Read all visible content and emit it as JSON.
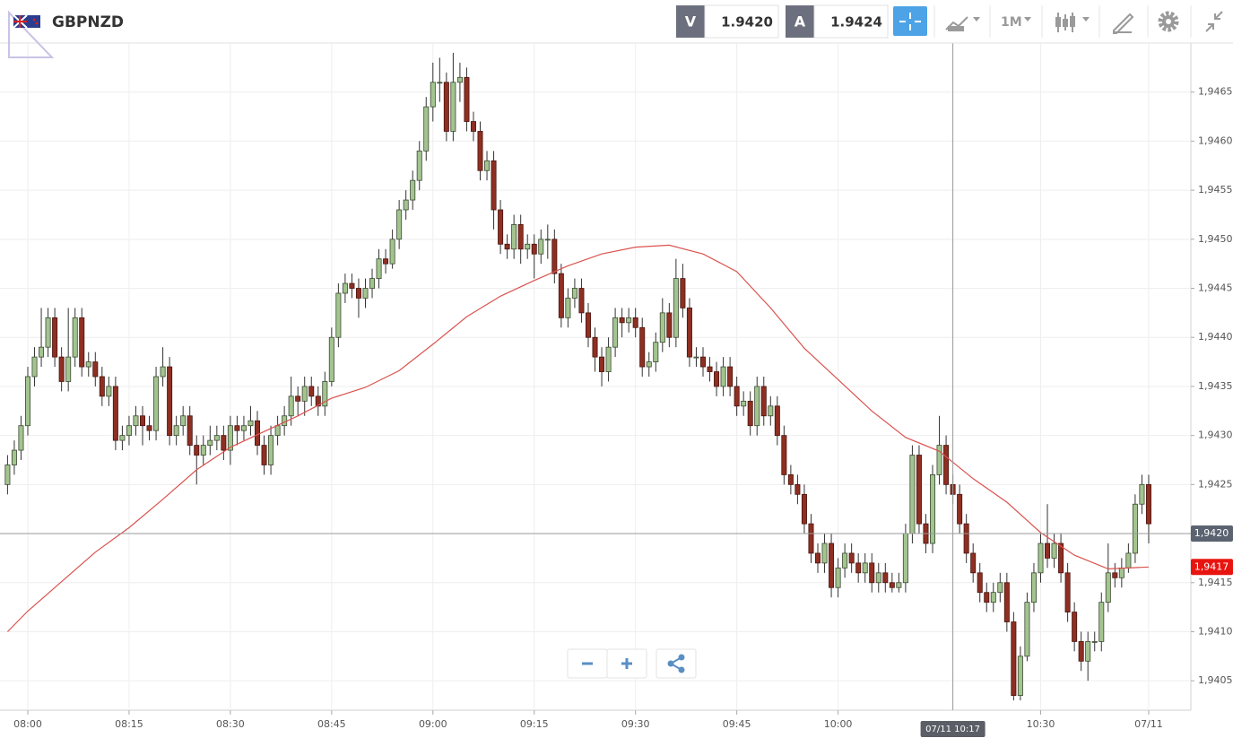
{
  "header": {
    "symbol": "GBPNZD",
    "sell_tag": "V",
    "sell": "1.9420",
    "buy_tag": "A",
    "buy": "1.9424",
    "timeframe": "1M"
  },
  "chart_data": {
    "type": "candlestick",
    "x": [
      "07:57",
      "07:58",
      "07:59",
      "08:00",
      "08:01",
      "08:02",
      "08:03",
      "08:04",
      "08:05",
      "08:06",
      "08:07",
      "08:08",
      "08:09",
      "08:10",
      "08:11",
      "08:12",
      "08:13",
      "08:14",
      "08:15",
      "08:16",
      "08:17",
      "08:18",
      "08:19",
      "08:20",
      "08:21",
      "08:22",
      "08:23",
      "08:24",
      "08:25",
      "08:26",
      "08:27",
      "08:28",
      "08:29",
      "08:30",
      "08:31",
      "08:32",
      "08:33",
      "08:34",
      "08:35",
      "08:36",
      "08:37",
      "08:38",
      "08:39",
      "08:40",
      "08:41",
      "08:42",
      "08:43",
      "08:44",
      "08:45",
      "08:46",
      "08:47",
      "08:48",
      "08:49",
      "08:50",
      "08:51",
      "08:52",
      "08:53",
      "08:54",
      "08:55",
      "08:56",
      "08:57",
      "08:58",
      "08:59",
      "09:00",
      "09:01",
      "09:02",
      "09:03",
      "09:04",
      "09:05",
      "09:06",
      "09:07",
      "09:08",
      "09:09",
      "09:10",
      "09:11",
      "09:12",
      "09:13",
      "09:14",
      "09:15",
      "09:16",
      "09:17",
      "09:18",
      "09:19",
      "09:20",
      "09:21",
      "09:22",
      "09:23",
      "09:24",
      "09:25",
      "09:26",
      "09:27",
      "09:28",
      "09:29",
      "09:30",
      "09:31",
      "09:32",
      "09:33",
      "09:34",
      "09:35",
      "09:36",
      "09:37",
      "09:38",
      "09:39",
      "09:40",
      "09:41",
      "09:42",
      "09:43",
      "09:44",
      "09:45",
      "09:46",
      "09:47",
      "09:48",
      "09:49",
      "09:50",
      "09:51",
      "09:52",
      "09:53",
      "09:54",
      "09:55",
      "09:56",
      "09:57",
      "09:58",
      "09:59",
      "10:00",
      "10:01",
      "10:02",
      "10:03",
      "10:04",
      "10:05",
      "10:06",
      "10:07",
      "10:08",
      "10:09",
      "10:10",
      "10:11",
      "10:12",
      "10:13",
      "10:14",
      "10:15",
      "10:16",
      "10:17",
      "10:18",
      "10:19",
      "10:20",
      "10:21",
      "10:22",
      "10:23",
      "10:24",
      "10:25",
      "10:26",
      "10:27",
      "10:28",
      "10:29",
      "10:30",
      "10:31",
      "10:32",
      "10:33",
      "10:34",
      "10:35",
      "10:36",
      "10:37",
      "10:38",
      "10:39",
      "10:40",
      "10:41",
      "10:42",
      "10:43",
      "10:44",
      "10:45",
      "10:46"
    ],
    "ohlc": [
      [
        1.9425,
        1.9428,
        1.9424,
        1.9427
      ],
      [
        1.9427,
        1.94295,
        1.9426,
        1.94285
      ],
      [
        1.94285,
        1.9432,
        1.94275,
        1.9431
      ],
      [
        1.9431,
        1.9437,
        1.943,
        1.9436
      ],
      [
        1.9436,
        1.9439,
        1.9435,
        1.9438
      ],
      [
        1.9438,
        1.9443,
        1.9437,
        1.9439
      ],
      [
        1.9439,
        1.9443,
        1.9438,
        1.9442
      ],
      [
        1.9442,
        1.9443,
        1.9437,
        1.9438
      ],
      [
        1.9438,
        1.9439,
        1.94345,
        1.94355
      ],
      [
        1.94355,
        1.9443,
        1.94345,
        1.9438
      ],
      [
        1.9438,
        1.9443,
        1.9437,
        1.9442
      ],
      [
        1.9442,
        1.9443,
        1.9436,
        1.9437
      ],
      [
        1.9437,
        1.94385,
        1.9436,
        1.94375
      ],
      [
        1.94375,
        1.94385,
        1.9435,
        1.9436
      ],
      [
        1.9436,
        1.9437,
        1.9433,
        1.9434
      ],
      [
        1.9434,
        1.9436,
        1.9433,
        1.9435
      ],
      [
        1.9435,
        1.9436,
        1.94285,
        1.94295
      ],
      [
        1.94295,
        1.9431,
        1.94285,
        1.943
      ],
      [
        1.943,
        1.9432,
        1.9429,
        1.9431
      ],
      [
        1.9431,
        1.9433,
        1.943,
        1.9432
      ],
      [
        1.9432,
        1.9433,
        1.9429,
        1.9431
      ],
      [
        1.9431,
        1.9432,
        1.94295,
        1.94305
      ],
      [
        1.94305,
        1.9437,
        1.94295,
        1.9436
      ],
      [
        1.9436,
        1.9439,
        1.9435,
        1.9437
      ],
      [
        1.9437,
        1.9438,
        1.9429,
        1.943
      ],
      [
        1.943,
        1.9432,
        1.9429,
        1.9431
      ],
      [
        1.9431,
        1.9433,
        1.943,
        1.9432
      ],
      [
        1.9432,
        1.9433,
        1.9428,
        1.9429
      ],
      [
        1.9429,
        1.943,
        1.9425,
        1.9428
      ],
      [
        1.9428,
        1.943,
        1.9427,
        1.9429
      ],
      [
        1.9429,
        1.9431,
        1.9428,
        1.94295
      ],
      [
        1.94295,
        1.9431,
        1.94285,
        1.943
      ],
      [
        1.943,
        1.9431,
        1.94275,
        1.94285
      ],
      [
        1.94285,
        1.9432,
        1.9427,
        1.9431
      ],
      [
        1.9431,
        1.9432,
        1.9429,
        1.94305
      ],
      [
        1.94305,
        1.9432,
        1.94295,
        1.9431
      ],
      [
        1.9431,
        1.9433,
        1.943,
        1.94315
      ],
      [
        1.94315,
        1.94325,
        1.9428,
        1.9429
      ],
      [
        1.9429,
        1.943,
        1.9426,
        1.9427
      ],
      [
        1.9427,
        1.9431,
        1.9426,
        1.943
      ],
      [
        1.943,
        1.9432,
        1.9429,
        1.9431
      ],
      [
        1.9431,
        1.9433,
        1.943,
        1.9432
      ],
      [
        1.9432,
        1.9436,
        1.9431,
        1.9434
      ],
      [
        1.9434,
        1.9435,
        1.9432,
        1.94335
      ],
      [
        1.94335,
        1.9436,
        1.9432,
        1.9435
      ],
      [
        1.9435,
        1.9436,
        1.9433,
        1.9434
      ],
      [
        1.9434,
        1.9435,
        1.9432,
        1.9433
      ],
      [
        1.9433,
        1.94365,
        1.9432,
        1.94355
      ],
      [
        1.94355,
        1.9441,
        1.9435,
        1.944
      ],
      [
        1.944,
        1.94455,
        1.9439,
        1.94445
      ],
      [
        1.94445,
        1.94465,
        1.94435,
        1.94455
      ],
      [
        1.94455,
        1.94465,
        1.9444,
        1.9445
      ],
      [
        1.9445,
        1.9446,
        1.9442,
        1.9444
      ],
      [
        1.9444,
        1.9446,
        1.9443,
        1.9445
      ],
      [
        1.9445,
        1.9447,
        1.9444,
        1.9446
      ],
      [
        1.9446,
        1.9449,
        1.9445,
        1.9448
      ],
      [
        1.9448,
        1.9449,
        1.94465,
        1.94475
      ],
      [
        1.94475,
        1.9451,
        1.9447,
        1.945
      ],
      [
        1.945,
        1.9454,
        1.9449,
        1.9453
      ],
      [
        1.9453,
        1.9455,
        1.9452,
        1.9454
      ],
      [
        1.9454,
        1.9457,
        1.9453,
        1.9456
      ],
      [
        1.9456,
        1.946,
        1.9455,
        1.9459
      ],
      [
        1.9459,
        1.94645,
        1.9458,
        1.94635
      ],
      [
        1.94635,
        1.9468,
        1.9462,
        1.9466
      ],
      [
        1.9466,
        1.94685,
        1.9464,
        1.9466
      ],
      [
        1.9466,
        1.9467,
        1.946,
        1.9461
      ],
      [
        1.9461,
        1.9469,
        1.946,
        1.9466
      ],
      [
        1.9466,
        1.9468,
        1.9464,
        1.94665
      ],
      [
        1.94665,
        1.94675,
        1.9461,
        1.9462
      ],
      [
        1.9462,
        1.9463,
        1.946,
        1.9461
      ],
      [
        1.9461,
        1.9462,
        1.9456,
        1.9457
      ],
      [
        1.9457,
        1.9459,
        1.9456,
        1.9458
      ],
      [
        1.9458,
        1.9459,
        1.9451,
        1.9453
      ],
      [
        1.9453,
        1.9454,
        1.94485,
        1.94495
      ],
      [
        1.94495,
        1.94505,
        1.9448,
        1.9449
      ],
      [
        1.9449,
        1.94525,
        1.9448,
        1.94515
      ],
      [
        1.94515,
        1.94525,
        1.94475,
        1.9449
      ],
      [
        1.9449,
        1.94505,
        1.9448,
        1.94495
      ],
      [
        1.94495,
        1.94505,
        1.9446,
        1.94485
      ],
      [
        1.94485,
        1.9451,
        1.94475,
        1.945
      ],
      [
        1.945,
        1.94515,
        1.9448,
        1.945
      ],
      [
        1.945,
        1.9451,
        1.94455,
        1.94465
      ],
      [
        1.94465,
        1.94475,
        1.9441,
        1.9442
      ],
      [
        1.9442,
        1.9445,
        1.9441,
        1.9444
      ],
      [
        1.9444,
        1.9446,
        1.9443,
        1.9445
      ],
      [
        1.9445,
        1.9446,
        1.94415,
        1.94425
      ],
      [
        1.94425,
        1.94435,
        1.9439,
        1.944
      ],
      [
        1.944,
        1.9441,
        1.94365,
        1.9438
      ],
      [
        1.9438,
        1.9439,
        1.9435,
        1.94365
      ],
      [
        1.94365,
        1.944,
        1.94355,
        1.9439
      ],
      [
        1.9439,
        1.9443,
        1.9438,
        1.9442
      ],
      [
        1.9442,
        1.9443,
        1.944,
        1.94415
      ],
      [
        1.94415,
        1.9443,
        1.94405,
        1.9442
      ],
      [
        1.9442,
        1.9443,
        1.944,
        1.9441
      ],
      [
        1.9441,
        1.9442,
        1.9436,
        1.9437
      ],
      [
        1.9437,
        1.94385,
        1.9436,
        1.94375
      ],
      [
        1.94375,
        1.94405,
        1.94365,
        1.94395
      ],
      [
        1.94395,
        1.9444,
        1.94385,
        1.94425
      ],
      [
        1.94425,
        1.94435,
        1.9439,
        1.944
      ],
      [
        1.944,
        1.9448,
        1.9439,
        1.9446
      ],
      [
        1.9446,
        1.94475,
        1.9442,
        1.9443
      ],
      [
        1.9443,
        1.9444,
        1.9437,
        1.9438
      ],
      [
        1.9438,
        1.9439,
        1.9437,
        1.9438
      ],
      [
        1.9438,
        1.9439,
        1.9436,
        1.9437
      ],
      [
        1.9437,
        1.9438,
        1.94355,
        1.94365
      ],
      [
        1.94365,
        1.94375,
        1.9434,
        1.9435
      ],
      [
        1.9435,
        1.9438,
        1.9434,
        1.9437
      ],
      [
        1.9437,
        1.9438,
        1.9434,
        1.9435
      ],
      [
        1.9435,
        1.9436,
        1.9432,
        1.9433
      ],
      [
        1.9433,
        1.94345,
        1.9432,
        1.94335
      ],
      [
        1.94335,
        1.94345,
        1.943,
        1.9431
      ],
      [
        1.9431,
        1.9436,
        1.943,
        1.9435
      ],
      [
        1.9435,
        1.9436,
        1.9431,
        1.9432
      ],
      [
        1.9432,
        1.9434,
        1.9431,
        1.9433
      ],
      [
        1.9433,
        1.9434,
        1.9429,
        1.943
      ],
      [
        1.943,
        1.9431,
        1.9425,
        1.9426
      ],
      [
        1.9426,
        1.9427,
        1.9424,
        1.9425
      ],
      [
        1.9425,
        1.9426,
        1.9423,
        1.9424
      ],
      [
        1.9424,
        1.9425,
        1.942,
        1.9421
      ],
      [
        1.9421,
        1.9422,
        1.9417,
        1.9418
      ],
      [
        1.9418,
        1.9419,
        1.9416,
        1.9417
      ],
      [
        1.9417,
        1.942,
        1.9416,
        1.9419
      ],
      [
        1.9419,
        1.942,
        1.94135,
        1.94145
      ],
      [
        1.94145,
        1.94175,
        1.94135,
        1.94165
      ],
      [
        1.94165,
        1.9419,
        1.94155,
        1.9418
      ],
      [
        1.9418,
        1.9419,
        1.9416,
        1.9417
      ],
      [
        1.9417,
        1.9418,
        1.9415,
        1.9416
      ],
      [
        1.9416,
        1.9418,
        1.9415,
        1.9417
      ],
      [
        1.9417,
        1.9418,
        1.9414,
        1.9415
      ],
      [
        1.9415,
        1.9417,
        1.9414,
        1.9416
      ],
      [
        1.9416,
        1.9417,
        1.9414,
        1.9415
      ],
      [
        1.9415,
        1.9416,
        1.9414,
        1.94145
      ],
      [
        1.94145,
        1.9416,
        1.9414,
        1.9415
      ],
      [
        1.9415,
        1.9421,
        1.9414,
        1.942
      ],
      [
        1.942,
        1.9429,
        1.9419,
        1.9428
      ],
      [
        1.9428,
        1.9429,
        1.942,
        1.9421
      ],
      [
        1.9421,
        1.9422,
        1.9418,
        1.9419
      ],
      [
        1.9419,
        1.9427,
        1.9418,
        1.9426
      ],
      [
        1.9426,
        1.9432,
        1.9425,
        1.9429
      ],
      [
        1.9429,
        1.943,
        1.9424,
        1.9425
      ],
      [
        1.9425,
        1.9426,
        1.9423,
        1.9424
      ],
      [
        1.9424,
        1.9425,
        1.942,
        1.9421
      ],
      [
        1.9421,
        1.9422,
        1.9417,
        1.9418
      ],
      [
        1.9418,
        1.9419,
        1.9415,
        1.9416
      ],
      [
        1.9416,
        1.9417,
        1.9413,
        1.9414
      ],
      [
        1.9414,
        1.9415,
        1.9412,
        1.9413
      ],
      [
        1.9413,
        1.9415,
        1.9412,
        1.9414
      ],
      [
        1.9414,
        1.9416,
        1.9413,
        1.9415
      ],
      [
        1.9415,
        1.9416,
        1.941,
        1.9411
      ],
      [
        1.9411,
        1.9412,
        1.9403,
        1.94035
      ],
      [
        1.94035,
        1.94085,
        1.9403,
        1.94075
      ],
      [
        1.94075,
        1.9414,
        1.9407,
        1.9413
      ],
      [
        1.9413,
        1.9417,
        1.9412,
        1.9416
      ],
      [
        1.9416,
        1.942,
        1.9415,
        1.9419
      ],
      [
        1.9419,
        1.9423,
        1.94165,
        1.94175
      ],
      [
        1.94175,
        1.942,
        1.94165,
        1.9419
      ],
      [
        1.9419,
        1.942,
        1.9415,
        1.9416
      ],
      [
        1.9416,
        1.9417,
        1.9411,
        1.9412
      ],
      [
        1.9412,
        1.9413,
        1.9408,
        1.9409
      ],
      [
        1.9409,
        1.941,
        1.9406,
        1.9407
      ],
      [
        1.9407,
        1.941,
        1.9405,
        1.9409
      ],
      [
        1.9409,
        1.941,
        1.9408,
        1.9409
      ],
      [
        1.9409,
        1.9414,
        1.9408,
        1.9413
      ],
      [
        1.9413,
        1.9419,
        1.9412,
        1.9416
      ],
      [
        1.9416,
        1.9417,
        1.94145,
        1.94155
      ],
      [
        1.94155,
        1.94175,
        1.94145,
        1.94165
      ],
      [
        1.94165,
        1.9419,
        1.9416,
        1.9418
      ],
      [
        1.9418,
        1.9424,
        1.9417,
        1.9423
      ],
      [
        1.9423,
        1.9426,
        1.9422,
        1.9425
      ],
      [
        1.9425,
        1.9426,
        1.9419,
        1.9421
      ]
    ],
    "up_color": "#a3c48f",
    "down_color": "#8e2f22",
    "moving_average": {
      "color": "#d9534f",
      "x": [
        "07:57",
        "08:00",
        "08:05",
        "08:10",
        "08:15",
        "08:20",
        "08:25",
        "08:30",
        "08:35",
        "08:40",
        "08:45",
        "08:50",
        "08:55",
        "09:00",
        "09:05",
        "09:10",
        "09:15",
        "09:20",
        "09:25",
        "09:30",
        "09:35",
        "09:40",
        "09:45",
        "09:50",
        "09:55",
        "10:00",
        "10:05",
        "10:10",
        "10:15",
        "10:20",
        "10:25",
        "10:30",
        "10:35",
        "10:40",
        "10:46"
      ],
      "values": [
        1.941,
        1.94121,
        1.94151,
        1.94181,
        1.94206,
        1.94235,
        1.94265,
        1.94288,
        1.94304,
        1.9432,
        1.94338,
        1.94349,
        1.94366,
        1.94393,
        1.94421,
        1.94442,
        1.94458,
        1.94473,
        1.94485,
        1.94492,
        1.94494,
        1.94485,
        1.94467,
        1.9443,
        1.94389,
        1.94357,
        1.94325,
        1.94298,
        1.94284,
        1.94256,
        1.94232,
        1.94201,
        1.94178,
        1.94164,
        1.94166
      ],
      "last_value_label": "1,9417"
    },
    "ylim": [
      1.9402,
      1.947
    ],
    "yticks": [
      {
        "value": 1.9405,
        "label": "1,9405"
      },
      {
        "value": 1.941,
        "label": "1,9410"
      },
      {
        "value": 1.9415,
        "label": "1,9415"
      },
      {
        "value": 1.942,
        "label": "1,9420"
      },
      {
        "value": 1.9425,
        "label": "1,9425"
      },
      {
        "value": 1.943,
        "label": "1,9430"
      },
      {
        "value": 1.9435,
        "label": "1,9435"
      },
      {
        "value": 1.944,
        "label": "1,9440"
      },
      {
        "value": 1.9445,
        "label": "1,9445"
      },
      {
        "value": 1.945,
        "label": "1,9450"
      },
      {
        "value": 1.9455,
        "label": "1,9455"
      },
      {
        "value": 1.946,
        "label": "1,9460"
      },
      {
        "value": 1.9465,
        "label": "1,9465"
      }
    ],
    "xticks": [
      "08:00",
      "08:15",
      "08:30",
      "08:45",
      "09:00",
      "09:15",
      "09:30",
      "09:45",
      "10:00",
      "10:30",
      {
        "value": "10:46",
        "label": "07/11"
      }
    ],
    "grid": true,
    "crosshair": {
      "x": "10:17",
      "x_label": "07/11 10:17",
      "y": 1.942,
      "y_label": "1,9420"
    }
  }
}
